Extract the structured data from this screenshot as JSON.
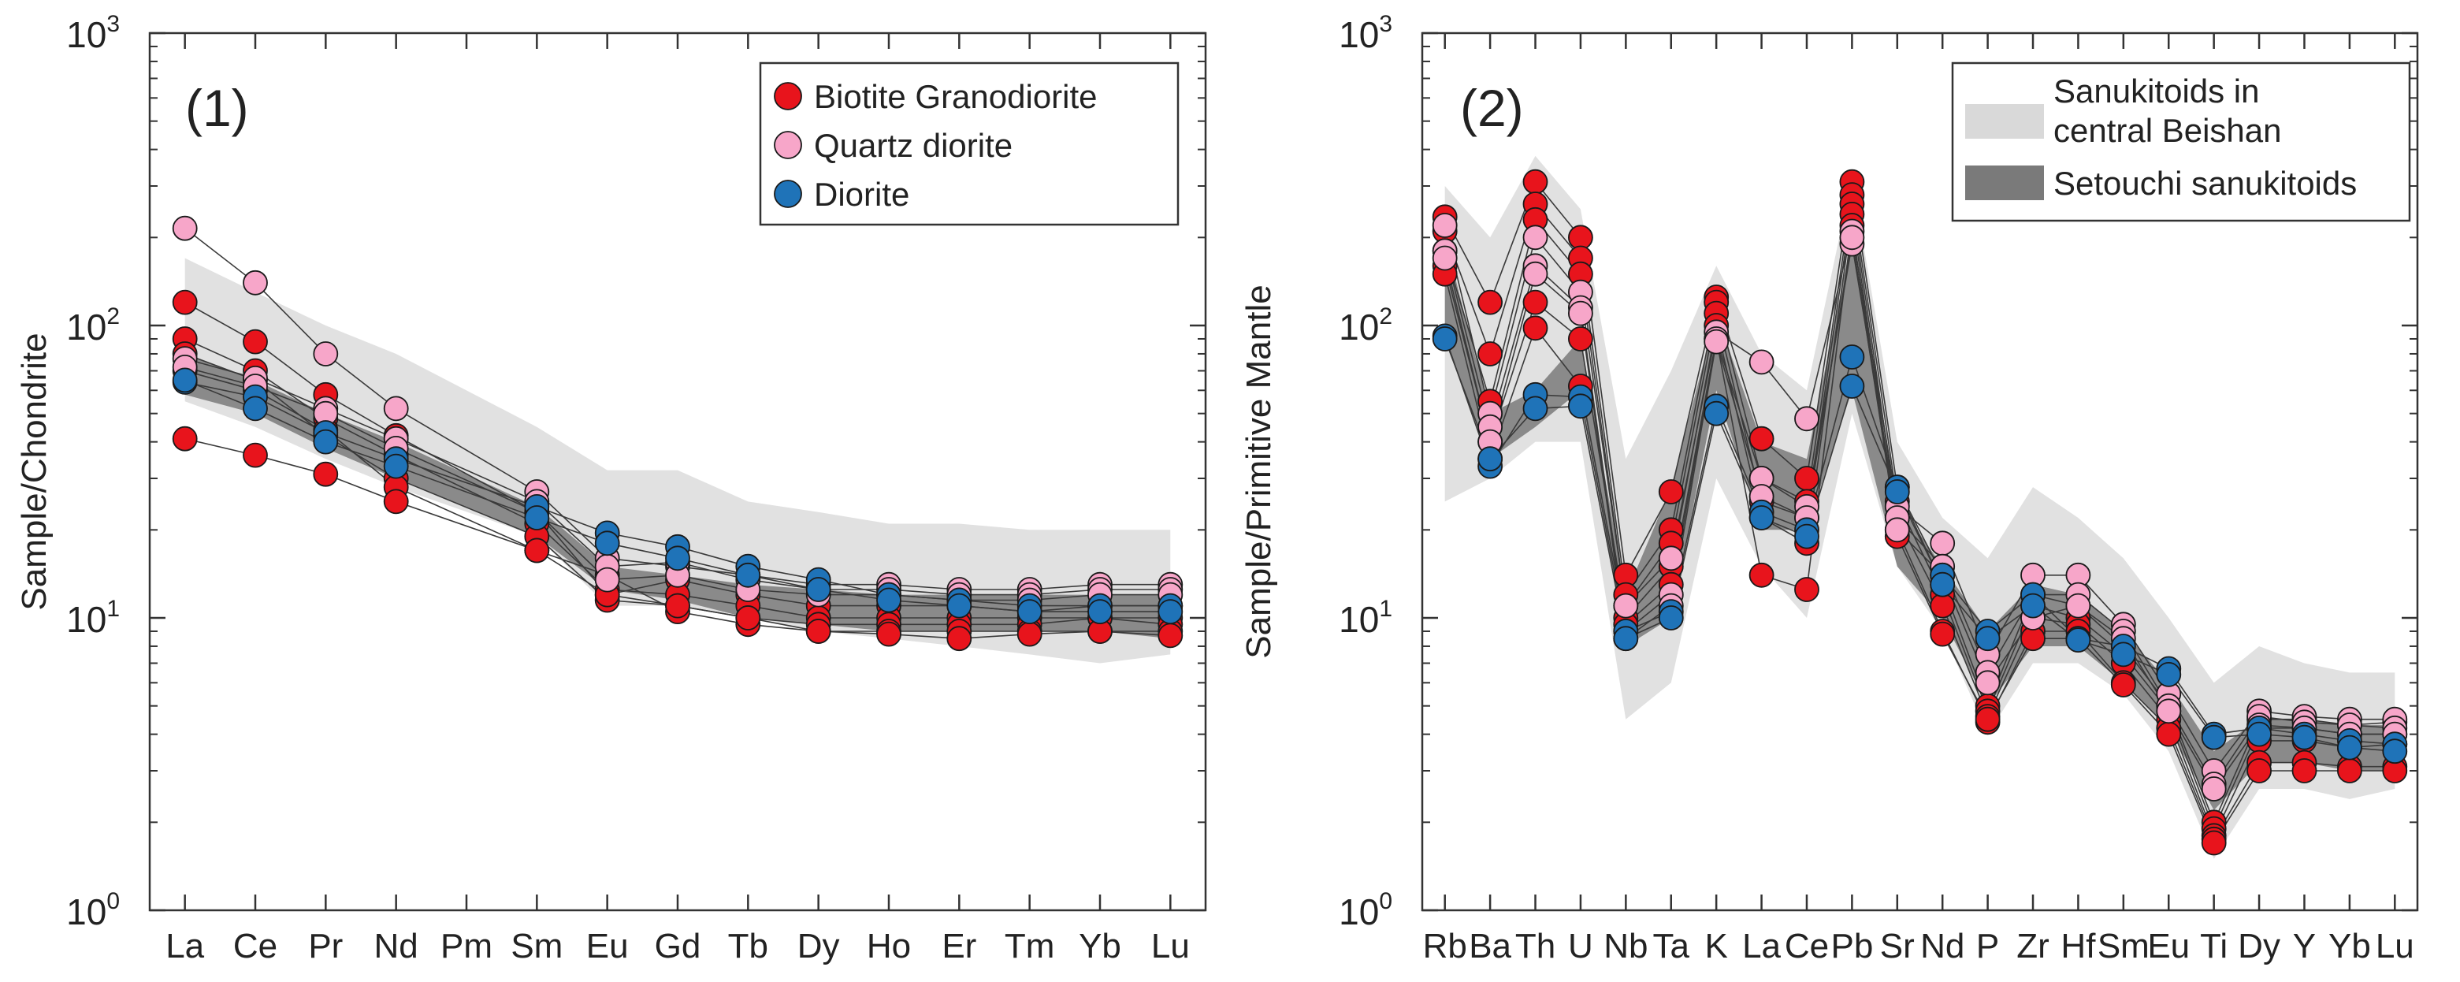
{
  "colors": {
    "biotite": "#e8141c",
    "quartz": "#f7a6c9",
    "diorite": "#1f73b8",
    "light_field": "#d9d9d9",
    "dark_field": "#7a7a7a",
    "line": "#3a3a3a"
  },
  "chart_data": [
    {
      "type": "line",
      "panel_label": "(1)",
      "ylabel": "Sample/Chondrite",
      "xlabel": "",
      "yscale": "log",
      "ylim": [
        1,
        1000
      ],
      "yticks": [
        {
          "mantissa": "10",
          "exp": "0",
          "value": 1
        },
        {
          "mantissa": "10",
          "exp": "1",
          "value": 10
        },
        {
          "mantissa": "10",
          "exp": "2",
          "value": 100
        },
        {
          "mantissa": "10",
          "exp": "3",
          "value": 1000
        }
      ],
      "categories": [
        "La",
        "Ce",
        "Pr",
        "Nd",
        "Pm",
        "Sm",
        "Eu",
        "Gd",
        "Tb",
        "Dy",
        "Ho",
        "Er",
        "Tm",
        "Yb",
        "Lu"
      ],
      "legend": {
        "position": "top-right",
        "items": [
          {
            "label": "Biotite Granodiorite",
            "kind": "marker",
            "color_key": "biotite"
          },
          {
            "label": "Quartz diorite",
            "kind": "marker",
            "color_key": "quartz"
          },
          {
            "label": "Diorite",
            "kind": "marker",
            "color_key": "diorite"
          }
        ]
      },
      "fields": [
        {
          "name": "Sanukitoids in central Beishan",
          "color_key": "light_field",
          "upper": [
            170,
            130,
            100,
            80,
            null,
            45,
            32,
            32,
            25,
            23,
            21,
            21,
            20,
            20,
            20
          ],
          "lower": [
            55,
            45,
            35,
            28,
            null,
            19,
            11,
            11,
            10,
            9,
            8.5,
            8,
            7.5,
            7,
            7.5
          ]
        },
        {
          "name": "Setouchi sanukitoids",
          "color_key": "dark_field",
          "upper": [
            80,
            65,
            50,
            40,
            null,
            24,
            15,
            14,
            13,
            12.5,
            12,
            12,
            12,
            12,
            12
          ],
          "lower": [
            58,
            50,
            38,
            30,
            null,
            19,
            12.5,
            11.5,
            10,
            9.5,
            9,
            9,
            9,
            9,
            8.5
          ]
        }
      ],
      "series": [
        {
          "name": "Biotite Granodiorite",
          "color_key": "biotite",
          "values": [
            120,
            88,
            58,
            42,
            null,
            23,
            12,
            13.5,
            12,
            11,
            11,
            11,
            10.5,
            11,
            11
          ]
        },
        {
          "name": "Biotite Granodiorite",
          "color_key": "biotite",
          "values": [
            90,
            70,
            48,
            36,
            null,
            21,
            12.5,
            12,
            11,
            10,
            10,
            10,
            10,
            10,
            10
          ]
        },
        {
          "name": "Biotite Granodiorite",
          "color_key": "biotite",
          "values": [
            80,
            65,
            42,
            30,
            null,
            19,
            11.5,
            11,
            10,
            9.5,
            9.5,
            9.5,
            9.5,
            10,
            9.5
          ]
        },
        {
          "name": "Biotite Granodiorite",
          "color_key": "biotite",
          "values": [
            70,
            60,
            44,
            28,
            null,
            17,
            14,
            10.5,
            9.5,
            9,
            9,
            9,
            9,
            9,
            9
          ]
        },
        {
          "name": "Biotite Granodiorite",
          "color_key": "biotite",
          "values": [
            41,
            36,
            31,
            25,
            null,
            17,
            12,
            11,
            10,
            9,
            8.8,
            8.5,
            8.8,
            9,
            8.7
          ]
        },
        {
          "name": "Quartz diorite",
          "color_key": "quartz",
          "values": [
            215,
            140,
            80,
            52,
            null,
            27,
            16,
            15,
            14,
            13,
            13,
            12.5,
            12.5,
            13,
            13
          ]
        },
        {
          "name": "Quartz diorite",
          "color_key": "quartz",
          "values": [
            77,
            66,
            52,
            41,
            null,
            25,
            15,
            15.5,
            13.5,
            12.5,
            12.5,
            12,
            12,
            12.5,
            12.5
          ]
        },
        {
          "name": "Quartz diorite",
          "color_key": "quartz",
          "values": [
            72,
            62,
            50,
            38,
            null,
            23,
            13.5,
            14,
            12.5,
            12,
            12,
            11.5,
            11.5,
            12,
            12
          ]
        },
        {
          "name": "Diorite",
          "color_key": "diorite",
          "values": [
            64,
            57,
            43,
            35,
            null,
            24,
            19.5,
            17.5,
            15,
            13.5,
            12,
            11.5,
            11,
            11,
            11
          ]
        },
        {
          "name": "Diorite",
          "color_key": "diorite",
          "values": [
            65,
            52,
            40,
            33,
            null,
            22,
            18,
            16,
            14,
            12.5,
            11.5,
            11,
            10.5,
            10.5,
            10.5
          ]
        }
      ]
    },
    {
      "type": "line",
      "panel_label": "(2)",
      "ylabel": "Sample/Primitive Mantle",
      "xlabel": "",
      "yscale": "log",
      "ylim": [
        1,
        1000
      ],
      "yticks": [
        {
          "mantissa": "10",
          "exp": "0",
          "value": 1
        },
        {
          "mantissa": "10",
          "exp": "1",
          "value": 10
        },
        {
          "mantissa": "10",
          "exp": "2",
          "value": 100
        },
        {
          "mantissa": "10",
          "exp": "3",
          "value": 1000
        }
      ],
      "categories": [
        "Rb",
        "Ba",
        "Th",
        "U",
        "Nb",
        "Ta",
        "K",
        "La",
        "Ce",
        "Pb",
        "Sr",
        "Nd",
        "P",
        "Zr",
        "Hf",
        "Sm",
        "Eu",
        "Ti",
        "Dy",
        "Y",
        "Yb",
        "Lu"
      ],
      "legend": {
        "position": "top-right",
        "items": [
          {
            "label": "Sanukitoids in",
            "label2": "central Beishan",
            "kind": "patch",
            "color_key": "light_field"
          },
          {
            "label": "Setouchi sanukitoids",
            "kind": "patch",
            "color_key": "dark_field"
          }
        ]
      },
      "fields": [
        {
          "name": "Sanukitoids in central Beishan",
          "color_key": "light_field",
          "upper": [
            300,
            200,
            380,
            250,
            35,
            70,
            160,
            80,
            60,
            320,
            40,
            22,
            16,
            28,
            22,
            16,
            10,
            6,
            8,
            7,
            6.5,
            6.5
          ],
          "lower": [
            25,
            30,
            40,
            40,
            4.5,
            6,
            30,
            15,
            10,
            50,
            15,
            9,
            4,
            7,
            7,
            5.5,
            3.5,
            1.5,
            2.6,
            2.6,
            2.4,
            2.6
          ]
        },
        {
          "name": "Setouchi sanukitoids",
          "color_key": "dark_field",
          "upper": [
            200,
            50,
            60,
            90,
            12,
            28,
            110,
            40,
            35,
            200,
            25,
            15,
            9,
            13,
            12,
            9,
            6,
            3.5,
            4.5,
            4.5,
            4.3,
            4.3
          ],
          "lower": [
            90,
            35,
            45,
            60,
            8,
            10,
            60,
            20,
            20,
            60,
            15,
            10,
            5,
            8,
            8,
            6,
            4.2,
            2.2,
            3.2,
            3.2,
            3,
            3
          ]
        }
      ],
      "series": [
        {
          "name": "Biotite Granodiorite",
          "color_key": "biotite",
          "values": [
            235,
            120,
            310,
            200,
            14,
            27,
            125,
            41,
            30,
            310,
            28,
            13,
            5,
            12,
            11,
            8,
            5,
            2,
            4.5,
            4.5,
            4.3,
            4.4
          ]
        },
        {
          "name": "Biotite Granodiorite",
          "color_key": "biotite",
          "values": [
            210,
            80,
            260,
            170,
            12,
            20,
            120,
            30,
            25,
            280,
            25,
            12,
            4.8,
            11,
            10,
            7.5,
            4.8,
            1.9,
            4.2,
            4.2,
            4,
            4
          ]
        },
        {
          "name": "Biotite Granodiorite",
          "color_key": "biotite",
          "values": [
            180,
            55,
            230,
            150,
            11,
            18,
            110,
            25,
            22,
            260,
            22,
            11,
            4.6,
            10,
            9.5,
            7,
            4.5,
            1.8,
            3.8,
            3.8,
            3.6,
            3.7
          ]
        },
        {
          "name": "Biotite Granodiorite",
          "color_key": "biotite",
          "values": [
            160,
            40,
            120,
            90,
            10,
            15,
            100,
            22,
            18,
            240,
            20,
            9,
            4.4,
            9,
            9,
            6,
            4.2,
            1.75,
            3.2,
            3.2,
            3.1,
            3.1
          ]
        },
        {
          "name": "Biotite Granodiorite",
          "color_key": "biotite",
          "values": [
            150,
            35,
            98,
            62,
            9.5,
            13,
            90,
            14,
            12.5,
            220,
            19,
            8.8,
            4.5,
            8.5,
            8.5,
            5.9,
            4,
            1.7,
            3,
            3,
            3,
            3
          ]
        },
        {
          "name": "Quartz diorite",
          "color_key": "quartz",
          "values": [
            220,
            50,
            200,
            130,
            11,
            16,
            95,
            75,
            48,
            210,
            24,
            18,
            7.5,
            14,
            14,
            9.5,
            5.5,
            3,
            4.8,
            4.6,
            4.5,
            4.5
          ]
        },
        {
          "name": "Quartz diorite",
          "color_key": "quartz",
          "values": [
            180,
            45,
            160,
            115,
            9,
            12,
            90,
            30,
            24,
            190,
            22,
            15,
            6.5,
            12,
            12,
            9,
            5,
            2.7,
            4.6,
            4.4,
            4.3,
            4.2
          ]
        },
        {
          "name": "Quartz diorite",
          "color_key": "quartz",
          "values": [
            170,
            40,
            150,
            110,
            8.5,
            11,
            88,
            26,
            22,
            200,
            20,
            14,
            6,
            10,
            11,
            8.5,
            4.8,
            2.6,
            4.3,
            4.2,
            4,
            4
          ]
        },
        {
          "name": "Diorite",
          "color_key": "diorite",
          "values": [
            92,
            33,
            58,
            57,
            9,
            10.5,
            53,
            23,
            20,
            78,
            28,
            14,
            9,
            12,
            8.5,
            8,
            6.7,
            4,
            4.2,
            4,
            3.8,
            3.7
          ]
        },
        {
          "name": "Diorite",
          "color_key": "diorite",
          "values": [
            90,
            35,
            52,
            53,
            8.5,
            10,
            50,
            22,
            19,
            62,
            27,
            13,
            8.5,
            11,
            8.4,
            7.5,
            6.4,
            3.9,
            4,
            3.9,
            3.6,
            3.5
          ]
        }
      ]
    }
  ]
}
